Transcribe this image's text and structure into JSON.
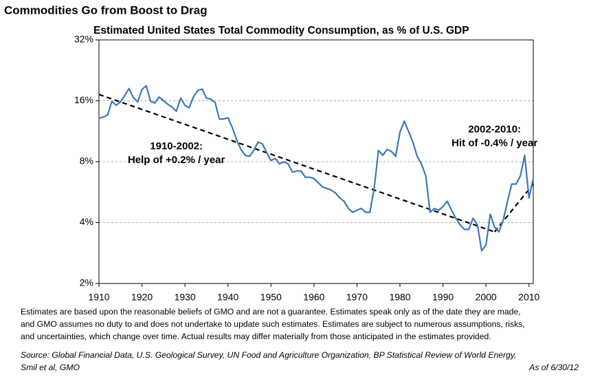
{
  "chart_data": {
    "type": "line",
    "title": "Commodities Go from Boost to Drag",
    "subtitle": "Estimated United States Total Commodity Consumption, as % of U.S. GDP",
    "x": [
      1910,
      1911,
      1912,
      1913,
      1914,
      1915,
      1916,
      1917,
      1918,
      1919,
      1920,
      1921,
      1922,
      1923,
      1924,
      1925,
      1926,
      1927,
      1928,
      1929,
      1930,
      1931,
      1932,
      1933,
      1934,
      1935,
      1936,
      1937,
      1938,
      1939,
      1940,
      1941,
      1942,
      1943,
      1944,
      1945,
      1946,
      1947,
      1948,
      1949,
      1950,
      1951,
      1952,
      1953,
      1954,
      1955,
      1956,
      1957,
      1958,
      1959,
      1960,
      1961,
      1962,
      1963,
      1964,
      1965,
      1966,
      1967,
      1968,
      1969,
      1970,
      1971,
      1972,
      1973,
      1974,
      1975,
      1976,
      1977,
      1978,
      1979,
      1980,
      1981,
      1982,
      1983,
      1984,
      1985,
      1986,
      1987,
      1988,
      1989,
      1990,
      1991,
      1992,
      1993,
      1994,
      1995,
      1996,
      1997,
      1998,
      1999,
      2000,
      2001,
      2002,
      2003,
      2004,
      2005,
      2006,
      2007,
      2008,
      2009,
      2010,
      2011
    ],
    "values": [
      13.1,
      13.3,
      13.6,
      15.9,
      15.2,
      15.8,
      17,
      18.4,
      16.6,
      15.8,
      18.2,
      19,
      15.9,
      15.6,
      16.7,
      16,
      15.4,
      14.9,
      14.2,
      16.5,
      15.2,
      14.8,
      16.8,
      18,
      18.3,
      16.5,
      16.3,
      15.7,
      13,
      13,
      13.2,
      11.8,
      10.3,
      9.2,
      8.6,
      8.5,
      9.1,
      10,
      9.8,
      8.9,
      8.1,
      8.3,
      7.8,
      8.0,
      7.8,
      7.1,
      7.2,
      7.2,
      6.7,
      6.7,
      6.6,
      6.3,
      6.0,
      5.9,
      5.8,
      5.6,
      5.3,
      5.1,
      4.7,
      4.5,
      4.6,
      4.7,
      4.5,
      4.5,
      5.9,
      9.1,
      8.6,
      9.2,
      9.0,
      8.5,
      11.2,
      12.7,
      11.3,
      10.0,
      8.5,
      7.8,
      6.8,
      4.5,
      4.7,
      4.6,
      4.8,
      5.1,
      4.6,
      4.2,
      3.9,
      3.7,
      3.7,
      4.2,
      3.9,
      2.9,
      3.1,
      4.4,
      3.8,
      3.6,
      4.1,
      5.1,
      6.2,
      6.2,
      6.8,
      8.6,
      5.3,
      6.6
    ],
    "color": "#3a78b8",
    "trend_lines": [
      {
        "x": [
          1910,
          2002
        ],
        "values": [
          17.2,
          3.6
        ]
      },
      {
        "x": [
          2002,
          2011
        ],
        "values": [
          3.6,
          6.2
        ]
      }
    ],
    "trend_color": "#000000",
    "log_scale": true,
    "xlim": [
      1910,
      2011
    ],
    "xticks": [
      1910,
      1920,
      1930,
      1940,
      1950,
      1960,
      1970,
      1980,
      1990,
      2000,
      2010
    ],
    "ylim": [
      2,
      32
    ],
    "yticks": [
      {
        "value": 2,
        "label": "2%"
      },
      {
        "value": 4,
        "label": "4%"
      },
      {
        "value": 8,
        "label": "8%"
      },
      {
        "value": 16,
        "label": "16%"
      },
      {
        "value": 32,
        "label": "32%"
      }
    ],
    "grid": true,
    "annotations": [
      {
        "lines": [
          "1910-2002:",
          "Help of +0.2% / year"
        ],
        "x": 1928,
        "y": 9.5
      },
      {
        "lines": [
          "2002-2010:",
          "Hit of -0.4% / year"
        ],
        "x": 2002,
        "y": 11.5
      }
    ],
    "notes": [
      "Estimates are based upon the reasonable beliefs of GMO and are not a guarantee.  Estimates speak only as of the date they are made,",
      "and GMO assumes no duty to and does not undertake to update such estimates. Estimates are subject to numerous assumptions, risks,",
      "and uncertainties, which change over time.  Actual results may differ materially from those anticipated in the estimates provided."
    ],
    "source": [
      "Source:  Global Financial Data, U.S. Geological Survey, UN Food and Agriculture Organization, BP Statistical Review of World Energy,",
      "Smil et al, GMO"
    ],
    "as_of": "As of 6/30/12"
  }
}
